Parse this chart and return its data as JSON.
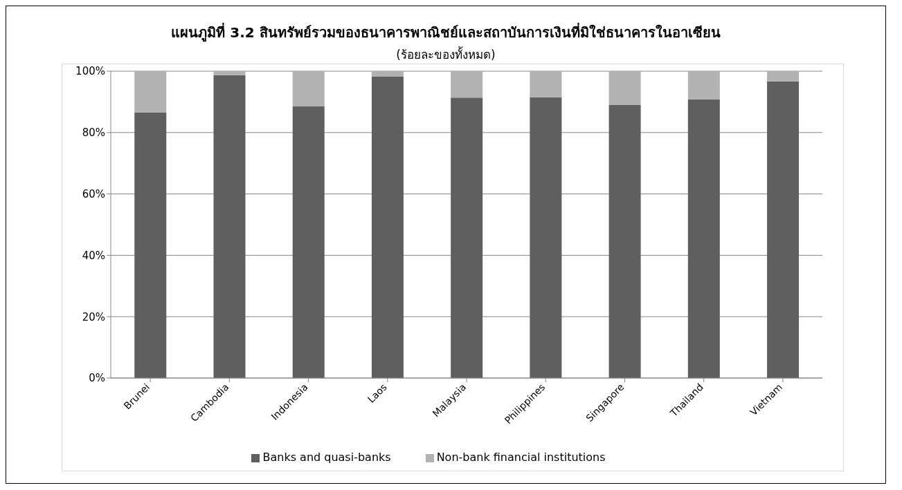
{
  "chart_data": {
    "type": "bar",
    "stacked": true,
    "title": "แผนภูมิที่ 3.2 สินทรัพย์รวมของธนาคารพาณิชย์และสถาบันการเงินที่มิใช่ธนาคารในอาเซียน",
    "subtitle": "(ร้อยละของทั้งหมด)",
    "categories": [
      "Brunei",
      "Cambodia",
      "Indonesia",
      "Laos",
      "Malaysia",
      "Philippines",
      "Singapore",
      "Thailand",
      "Vietnam"
    ],
    "series": [
      {
        "name": "Banks and quasi-banks",
        "color": "#5f5f5f",
        "values": [
          86.5,
          98.7,
          88.5,
          98.2,
          91.4,
          91.5,
          89.1,
          90.8,
          96.7
        ]
      },
      {
        "name": "Non-bank financial institutions",
        "color": "#b2b2b2",
        "values": [
          13.5,
          1.3,
          11.5,
          1.8,
          8.6,
          8.5,
          10.9,
          9.2,
          3.3
        ]
      }
    ],
    "ylim": [
      0,
      100
    ],
    "yticks": [
      {
        "value": 0,
        "label": "0%"
      },
      {
        "value": 20,
        "label": "20%"
      },
      {
        "value": 40,
        "label": "40%"
      },
      {
        "value": 60,
        "label": "60%"
      },
      {
        "value": 80,
        "label": "80%"
      },
      {
        "value": 100,
        "label": "100%"
      }
    ],
    "grid": "y",
    "legend": "bottom"
  }
}
